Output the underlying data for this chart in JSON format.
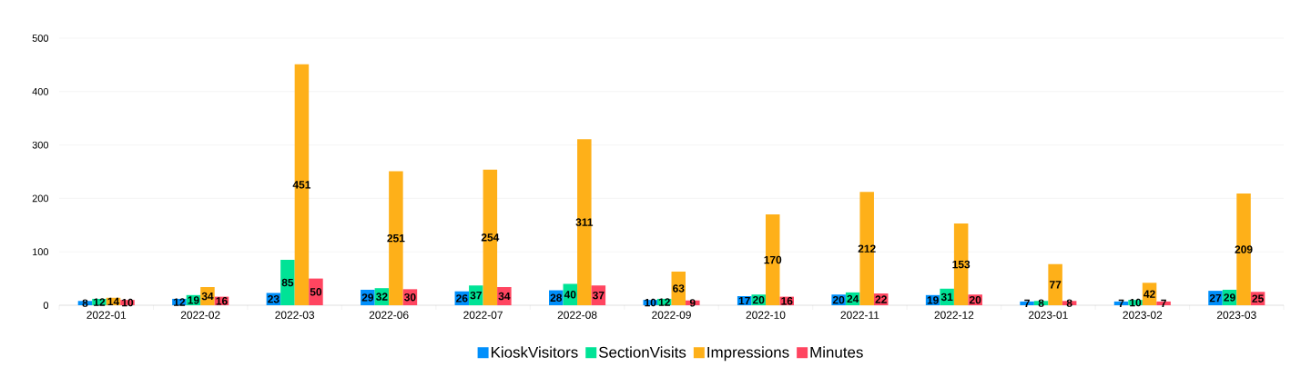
{
  "chart_data": {
    "type": "bar",
    "categories": [
      "2022-01",
      "2022-02",
      "2022-03",
      "2022-06",
      "2022-07",
      "2022-08",
      "2022-09",
      "2022-10",
      "2022-11",
      "2022-12",
      "2023-01",
      "2023-02",
      "2023-03"
    ],
    "series": [
      {
        "name": "KioskVisitors",
        "color": "#008ffb",
        "values": [
          8,
          12,
          23,
          29,
          26,
          28,
          10,
          17,
          20,
          19,
          7,
          7,
          27
        ]
      },
      {
        "name": "SectionVisits",
        "color": "#00e396",
        "values": [
          12,
          19,
          85,
          32,
          37,
          40,
          12,
          20,
          24,
          31,
          8,
          10,
          29
        ]
      },
      {
        "name": "Impressions",
        "color": "#feb019",
        "values": [
          14,
          34,
          451,
          251,
          254,
          311,
          63,
          170,
          212,
          153,
          77,
          42,
          209
        ]
      },
      {
        "name": "Minutes",
        "color": "#ff4560",
        "values": [
          10,
          16,
          50,
          30,
          34,
          37,
          9,
          16,
          22,
          20,
          8,
          7,
          25
        ]
      }
    ],
    "ylim": [
      0,
      500
    ],
    "yticks": [
      0,
      100,
      200,
      300,
      400,
      500
    ],
    "grid": "y",
    "legend": "bottom",
    "data_labels": true
  }
}
